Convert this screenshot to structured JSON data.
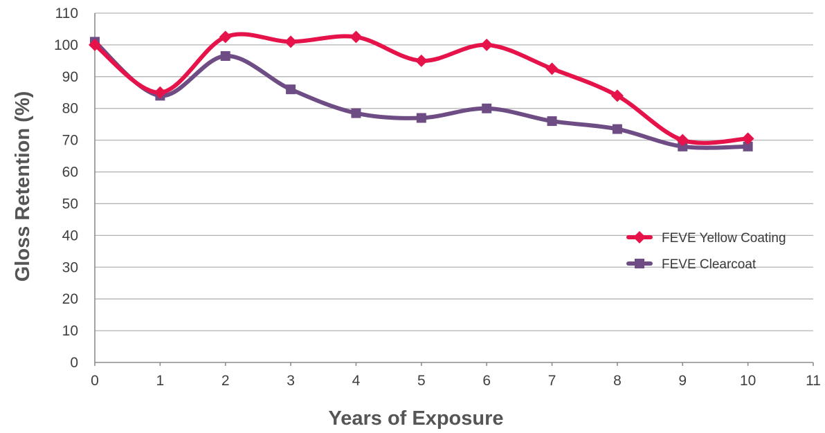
{
  "chart_data": {
    "type": "line",
    "xlabel": "Years of Exposure",
    "ylabel": "Gloss Retention (%)",
    "xlim": [
      0,
      11
    ],
    "ylim": [
      0,
      110
    ],
    "xticks": [
      "0",
      "1",
      "2",
      "3",
      "4",
      "5",
      "6",
      "7",
      "8",
      "9",
      "10",
      "11"
    ],
    "yticks": [
      "0",
      "10",
      "20",
      "30",
      "40",
      "50",
      "60",
      "70",
      "80",
      "90",
      "100",
      "110"
    ],
    "grid": "horizontal",
    "legend_position": "right",
    "series": [
      {
        "name": "FEVE Yellow Coating",
        "color": "#e5134a",
        "marker": "diamond",
        "x": [
          0,
          1,
          2,
          3,
          4,
          5,
          6,
          7,
          8,
          9,
          10
        ],
        "values": [
          100,
          85,
          102.5,
          101,
          102.5,
          95,
          100,
          92.5,
          84,
          70,
          70.5
        ]
      },
      {
        "name": "FEVE Clearcoat",
        "color": "#6e4d85",
        "marker": "square",
        "x": [
          0,
          1,
          2,
          3,
          4,
          5,
          6,
          7,
          8,
          9,
          10
        ],
        "values": [
          101,
          84,
          96.5,
          86,
          78.5,
          77,
          80,
          76,
          73.5,
          68,
          68
        ]
      }
    ]
  }
}
